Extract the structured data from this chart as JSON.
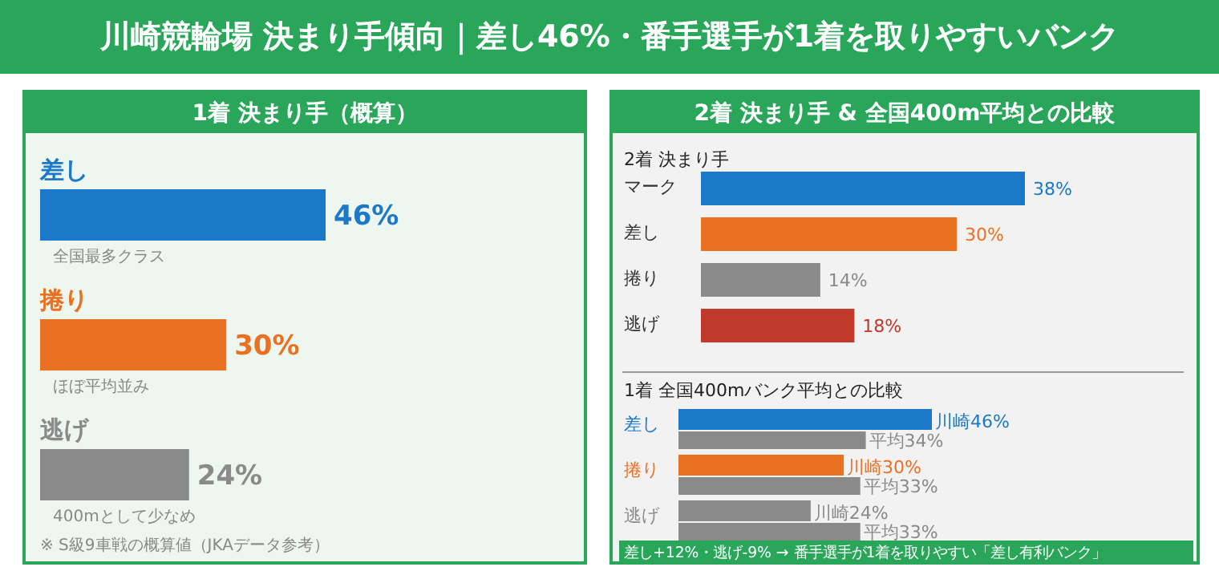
{
  "chart_data": [
    {
      "type": "bar",
      "orientation": "horizontal",
      "title": "川崎競輪場 決まり手傾向｜差し46%・番手選手が1着を取りやすいバンク",
      "subtitle": "1着 決まり手（概算）",
      "categories": [
        "差し",
        "捲り",
        "逃げ"
      ],
      "values": [
        46,
        30,
        24
      ],
      "colors": [
        "#1c78c8",
        "#ea7122",
        "#8a8a8a"
      ],
      "value_labels": [
        "46%",
        "30%",
        "24%"
      ],
      "annotations": [
        "全国最多クラス",
        "ほぼ平均並み",
        "400mとして少なめ",
        "※ S級9車戦の概算値（JKAデータ参考）"
      ]
    },
    {
      "type": "bar",
      "orientation": "horizontal",
      "title": "2着 決まり手 & 全国400m平均との比較",
      "subtitle": "2着 決まり手",
      "categories": [
        "マーク",
        "差し",
        "捲り",
        "逃げ"
      ],
      "values": [
        38,
        30,
        14,
        18
      ],
      "colors": [
        "#1c78c8",
        "#ea7122",
        "#8a8a8a",
        "#c0392b"
      ],
      "value_labels": [
        "38%",
        "30%",
        "14%",
        "18%"
      ]
    },
    {
      "type": "bar",
      "orientation": "horizontal",
      "title": "1着 全国400mバンク平均との比較",
      "categories": [
        "差し",
        "捲り",
        "逃げ"
      ],
      "series": [
        {
          "colors": [
            "#1c78c8",
            "#ea7122",
            "#8a8a8a"
          ],
          "values": [
            46,
            30,
            24
          ],
          "value_labels": [
            "川崎46%",
            "川崎30%",
            "川崎24%"
          ]
        },
        {
          "color": "#8a8a8a",
          "values": [
            34,
            33,
            33
          ],
          "value_labels": [
            "平均34%",
            "平均33%",
            "平均33%"
          ]
        }
      ],
      "annotations": [
        "差し+12%・逃げ-9% → 番手選手が1着を取りやすい「差し有利バンク」"
      ]
    }
  ]
}
